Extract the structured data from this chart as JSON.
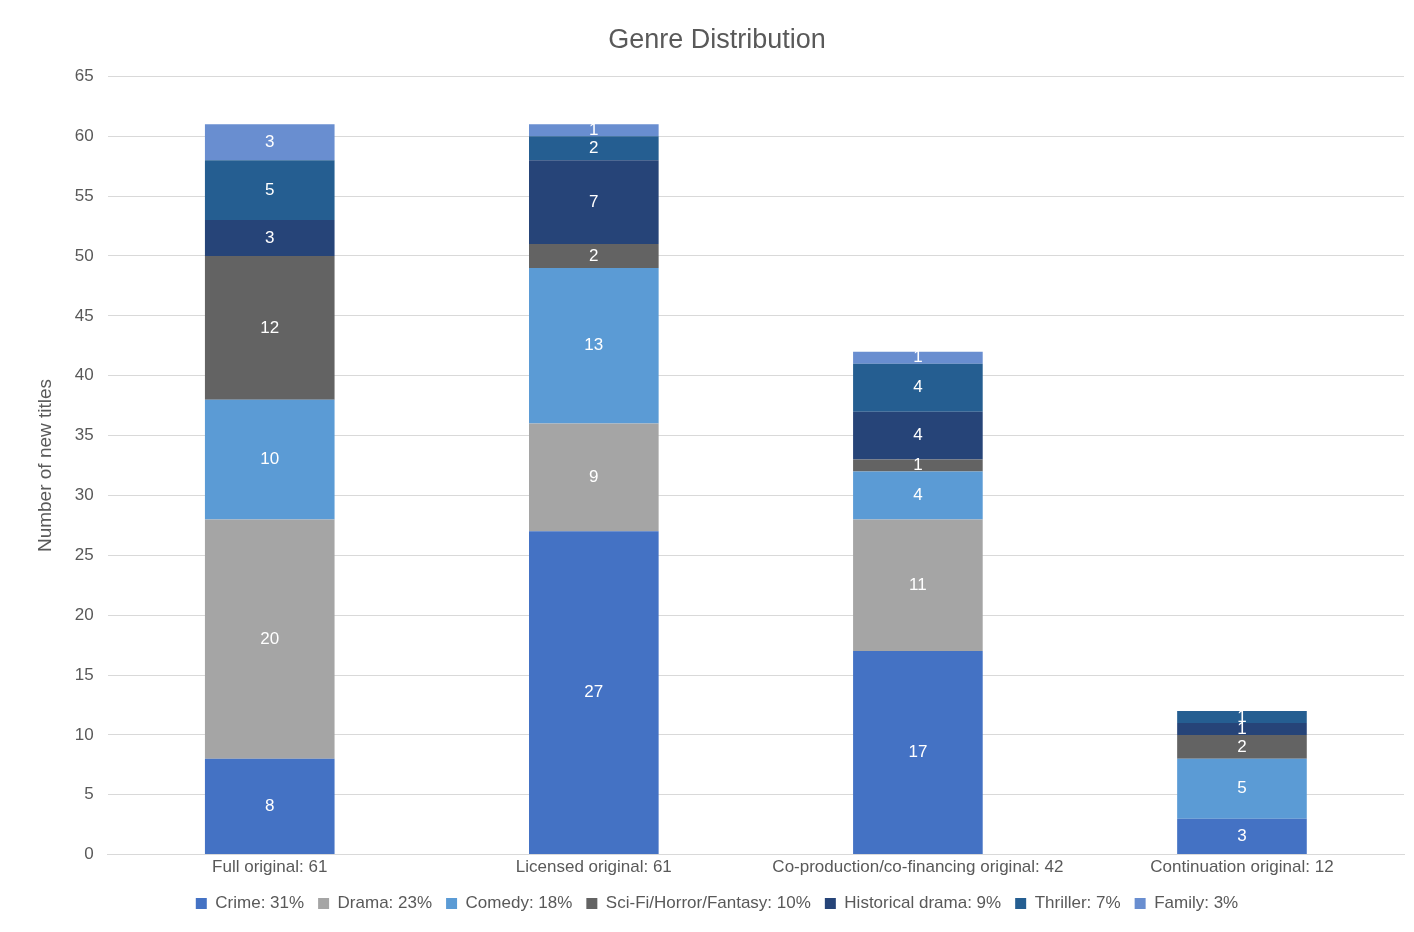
{
  "chart_data": {
    "type": "bar",
    "title": "Genre Distribution",
    "ylabel": "Number of new titles",
    "stacked": true,
    "categories": [
      "Full original: 61",
      "Licensed original: 61",
      "Co-production/co-financing original: 42",
      "Continuation original: 12"
    ],
    "series": [
      {
        "name": "Crime: 31%",
        "color": "#4472c4",
        "values": [
          8,
          27,
          17,
          3
        ]
      },
      {
        "name": "Drama: 23%",
        "color": "#a5a5a5",
        "values": [
          20,
          9,
          11,
          null
        ]
      },
      {
        "name": "Comedy: 18%",
        "color": "#5b9bd5",
        "values": [
          10,
          13,
          4,
          5
        ]
      },
      {
        "name": "Sci-Fi/Horror/Fantasy: 10%",
        "color": "#636363",
        "values": [
          12,
          2,
          1,
          2
        ]
      },
      {
        "name": "Historical drama: 9%",
        "color": "#264478",
        "values": [
          3,
          7,
          4,
          1
        ]
      },
      {
        "name": "Thriller: 7%",
        "color": "#255e91",
        "values": [
          5,
          2,
          4,
          1
        ]
      },
      {
        "name": "Family: 3%",
        "color": "#698ed0",
        "values": [
          3,
          1,
          1,
          null
        ]
      }
    ],
    "ylim": [
      0,
      65
    ],
    "yticks": [
      0,
      5,
      10,
      15,
      20,
      25,
      30,
      35,
      40,
      45,
      50,
      55,
      60,
      65
    ],
    "grid": "y",
    "legend": "bottom",
    "data_labels": true
  }
}
